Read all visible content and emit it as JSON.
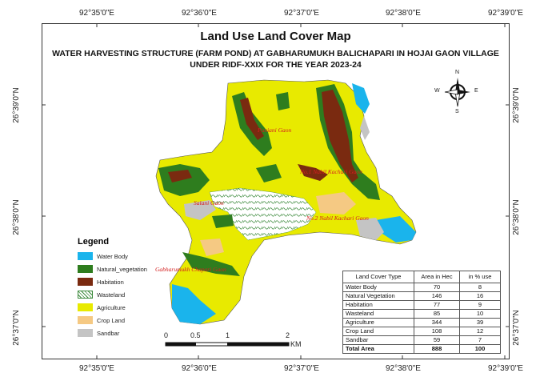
{
  "title": "Land Use Land Cover Map",
  "subtitle_line1": "WATER HARVESTING STRUCTURE (FARM POND) AT GABHARUMUKH BALICHAPARI IN HOJAI GAON VILLAGE",
  "subtitle_line2": "UNDER RIDF-XXIX FOR THE YEAR 2023-24",
  "graticule": {
    "top_labels": [
      "92°35'0\"E",
      "92°36'0\"E",
      "92°37'0\"E",
      "92°38'0\"E",
      "92°39'0\"E"
    ],
    "bottom_labels": [
      "92°35'0\"E",
      "92°36'0\"E",
      "92°37'0\"E",
      "92°38'0\"E",
      "92°39'0\"E"
    ],
    "left_labels": [
      "26°39'0\"N",
      "26°38'0\"N",
      "26°37'0\"N"
    ],
    "right_labels": [
      "26°39'0\"N",
      "26°38'0\"N",
      "26°37'0\"N"
    ]
  },
  "north_arrow": {
    "n": "N",
    "s": "S",
    "e": "E",
    "w": "W"
  },
  "legend": {
    "title": "Legend",
    "items": [
      {
        "label": "Water Body",
        "color": "#1ab4ec"
      },
      {
        "label": "Natural_vegetation",
        "color": "#2e7d1e"
      },
      {
        "label": "Habitation",
        "color": "#7a2a10"
      },
      {
        "label": "Wasteland",
        "color": "#ffffff"
      },
      {
        "label": "Agriculture",
        "color": "#e8ea00"
      },
      {
        "label": "Crop Land",
        "color": "#f5c983"
      },
      {
        "label": "Sandbar",
        "color": "#c4c4c4"
      }
    ]
  },
  "places": [
    {
      "name": "Puniani Gaon"
    },
    {
      "name": "No.1 Nabil Kachari Gaon"
    },
    {
      "name": "Salani Gaon"
    },
    {
      "name": "No.2 Nabil Kachari Gaon"
    },
    {
      "name": "Gabharumukh Chapari Gaon"
    }
  ],
  "table": {
    "headers": [
      "Land Cover Type",
      "Area in Hec",
      "in % use"
    ],
    "rows": [
      [
        "Water Body",
        "70",
        "8"
      ],
      [
        "Natural Vegetation",
        "146",
        "16"
      ],
      [
        "Habitation",
        "77",
        "9"
      ],
      [
        "Wasteland",
        "85",
        "10"
      ],
      [
        "Agriculture",
        "344",
        "39"
      ],
      [
        "Crop Land",
        "108",
        "12"
      ],
      [
        "Sandbar",
        "59",
        "7"
      ]
    ],
    "total": [
      "Total Area",
      "888",
      "100"
    ]
  },
  "scale_bar": {
    "ticks": [
      "0",
      "0.5",
      "1",
      "2"
    ],
    "unit": "KM"
  }
}
